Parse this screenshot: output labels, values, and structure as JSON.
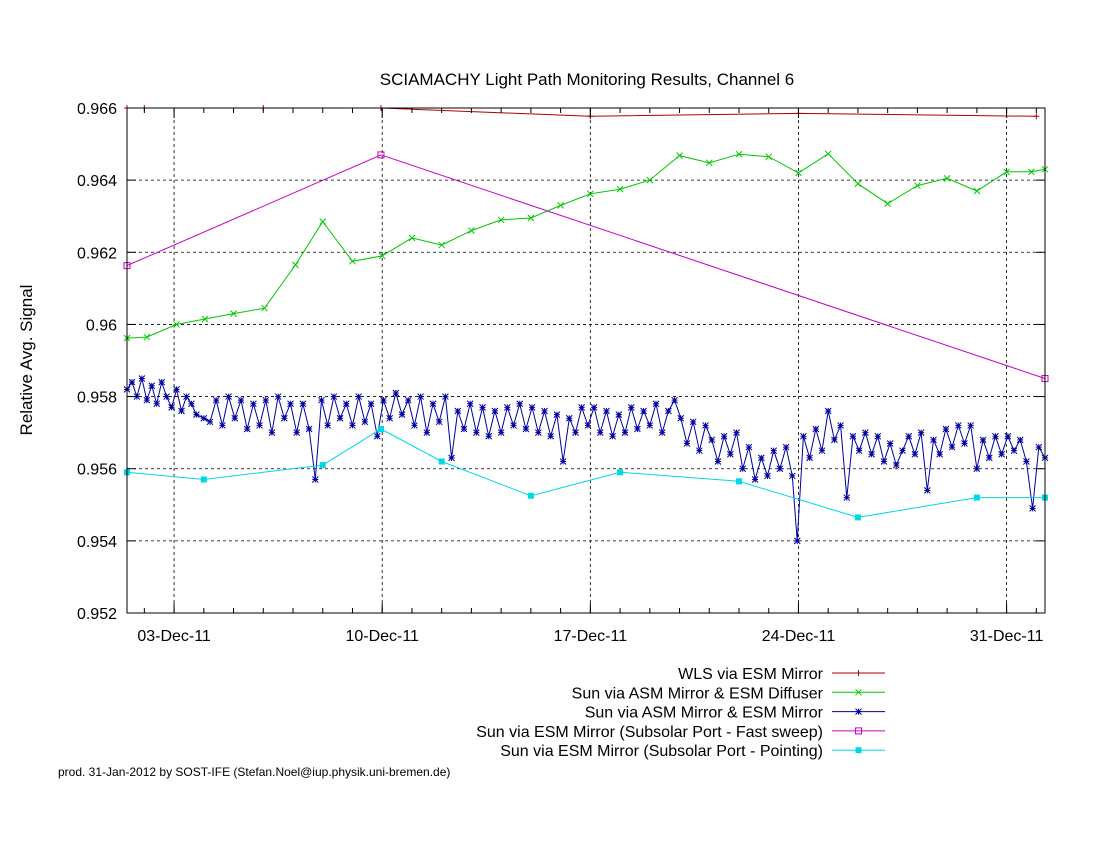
{
  "chart_data": {
    "type": "line",
    "title": "SCIAMACHY Light Path Monitoring Results, Channel 6",
    "xlabel": "",
    "ylabel": "Relative Avg. Signal",
    "xlim": [
      "2011-12-01T10:00",
      "2012-01-01T07:00"
    ],
    "ylim": [
      0.952,
      0.966
    ],
    "x_ticks": [
      {
        "label": "03-Dec-11",
        "date": "2011-12-03T00:00"
      },
      {
        "label": "10-Dec-11",
        "date": "2011-12-10T00:00"
      },
      {
        "label": "17-Dec-11",
        "date": "2011-12-17T00:00"
      },
      {
        "label": "24-Dec-11",
        "date": "2011-12-24T00:00"
      },
      {
        "label": "31-Dec-11",
        "date": "2011-12-31T00:00"
      }
    ],
    "y_ticks": [
      {
        "label": "0.952",
        "value": 0.952
      },
      {
        "label": "0.954",
        "value": 0.954
      },
      {
        "label": "0.956",
        "value": 0.956
      },
      {
        "label": "0.958",
        "value": 0.958
      },
      {
        "label": "0.96",
        "value": 0.96
      },
      {
        "label": "0.962",
        "value": 0.962
      },
      {
        "label": "0.964",
        "value": 0.964
      },
      {
        "label": "0.966",
        "value": 0.966
      }
    ],
    "grid": true,
    "legend_position": "below-right",
    "series": [
      {
        "name": "WLS via ESM Mirror",
        "color": "#b00000",
        "marker": "plus",
        "points": [
          [
            "2011-12-01T10:00",
            0.966
          ],
          [
            "2011-12-02T00:00",
            0.966
          ],
          [
            "2011-12-06T00:00",
            0.966
          ],
          [
            "2011-12-09T23:00",
            0.966
          ],
          [
            "2011-12-17T00:00",
            0.96577
          ],
          [
            "2011-12-24T00:00",
            0.96585
          ],
          [
            "2012-01-01T00:00",
            0.96577
          ]
        ]
      },
      {
        "name": "Sun via ASM Mirror & ESM Diffuser",
        "color": "#00c800",
        "marker": "cross",
        "points": [
          [
            "2011-12-01T10:00",
            0.95962
          ],
          [
            "2011-12-02T02:00",
            0.95965
          ],
          [
            "2011-12-03T02:00",
            0.96
          ],
          [
            "2011-12-04T01:00",
            0.96015
          ],
          [
            "2011-12-05T00:00",
            0.9603
          ],
          [
            "2011-12-06T01:00",
            0.96045
          ],
          [
            "2011-12-07T02:00",
            0.96165
          ],
          [
            "2011-12-08T00:00",
            0.96285
          ],
          [
            "2011-12-09T00:00",
            0.96175
          ],
          [
            "2011-12-10T00:00",
            0.9619
          ],
          [
            "2011-12-11T00:00",
            0.9624
          ],
          [
            "2011-12-12T00:00",
            0.9622
          ],
          [
            "2011-12-13T00:00",
            0.9626
          ],
          [
            "2011-12-14T00:00",
            0.9629
          ],
          [
            "2011-12-15T00:00",
            0.96295
          ],
          [
            "2011-12-16T00:00",
            0.9633
          ],
          [
            "2011-12-17T00:00",
            0.96362
          ],
          [
            "2011-12-18T00:00",
            0.96375
          ],
          [
            "2011-12-19T00:00",
            0.964
          ],
          [
            "2011-12-20T00:00",
            0.96468
          ],
          [
            "2011-12-21T00:00",
            0.96448
          ],
          [
            "2011-12-22T00:00",
            0.96472
          ],
          [
            "2011-12-23T00:00",
            0.96465
          ],
          [
            "2011-12-24T00:00",
            0.9642
          ],
          [
            "2011-12-25T00:00",
            0.96473
          ],
          [
            "2011-12-26T00:00",
            0.9639
          ],
          [
            "2011-12-27T00:00",
            0.96335
          ],
          [
            "2011-12-28T00:00",
            0.96385
          ],
          [
            "2011-12-29T00:00",
            0.96405
          ],
          [
            "2011-12-30T00:00",
            0.9637
          ],
          [
            "2011-12-31T00:00",
            0.96423
          ],
          [
            "2011-12-31T20:00",
            0.96423
          ],
          [
            "2012-01-01T07:00",
            0.9643
          ]
        ]
      },
      {
        "name": "Sun via ASM Mirror & ESM Mirror",
        "color": "#0000a0",
        "marker": "star",
        "points": [
          [
            "2011-12-01T10:00",
            0.9582
          ],
          [
            "2011-12-01T14:00",
            0.9584
          ],
          [
            "2011-12-01T18:00",
            0.958
          ],
          [
            "2011-12-01T22:00",
            0.9585
          ],
          [
            "2011-12-02T02:00",
            0.9579
          ],
          [
            "2011-12-02T06:00",
            0.9583
          ],
          [
            "2011-12-02T10:00",
            0.9578
          ],
          [
            "2011-12-02T14:00",
            0.9584
          ],
          [
            "2011-12-02T18:00",
            0.958
          ],
          [
            "2011-12-02T22:00",
            0.9577
          ],
          [
            "2011-12-03T02:00",
            0.9582
          ],
          [
            "2011-12-03T06:00",
            0.9576
          ],
          [
            "2011-12-03T10:00",
            0.958
          ],
          [
            "2011-12-03T14:00",
            0.9578
          ],
          [
            "2011-12-03T18:00",
            0.9575
          ],
          [
            "2011-12-04T00:00",
            0.9574
          ],
          [
            "2011-12-04T05:00",
            0.9573
          ],
          [
            "2011-12-04T10:00",
            0.9579
          ],
          [
            "2011-12-04T15:00",
            0.9572
          ],
          [
            "2011-12-04T20:00",
            0.958
          ],
          [
            "2011-12-05T01:00",
            0.9574
          ],
          [
            "2011-12-05T06:00",
            0.9579
          ],
          [
            "2011-12-05T11:00",
            0.9571
          ],
          [
            "2011-12-05T16:00",
            0.9578
          ],
          [
            "2011-12-05T21:00",
            0.9572
          ],
          [
            "2011-12-06T02:00",
            0.9579
          ],
          [
            "2011-12-06T07:00",
            0.957
          ],
          [
            "2011-12-06T12:00",
            0.958
          ],
          [
            "2011-12-06T17:00",
            0.9574
          ],
          [
            "2011-12-06T22:00",
            0.9578
          ],
          [
            "2011-12-07T03:00",
            0.957
          ],
          [
            "2011-12-07T08:00",
            0.9578
          ],
          [
            "2011-12-07T13:00",
            0.9571
          ],
          [
            "2011-12-07T18:00",
            0.9557
          ],
          [
            "2011-12-07T23:00",
            0.9579
          ],
          [
            "2011-12-08T04:00",
            0.9572
          ],
          [
            "2011-12-08T09:00",
            0.958
          ],
          [
            "2011-12-08T14:00",
            0.9574
          ],
          [
            "2011-12-08T19:00",
            0.9578
          ],
          [
            "2011-12-09T00:00",
            0.9572
          ],
          [
            "2011-12-09T05:00",
            0.958
          ],
          [
            "2011-12-09T10:00",
            0.9573
          ],
          [
            "2011-12-09T15:00",
            0.9578
          ],
          [
            "2011-12-09T20:00",
            0.9569
          ],
          [
            "2011-12-10T01:00",
            0.9579
          ],
          [
            "2011-12-10T06:00",
            0.9574
          ],
          [
            "2011-12-10T11:00",
            0.9581
          ],
          [
            "2011-12-10T16:00",
            0.9575
          ],
          [
            "2011-12-10T21:00",
            0.9579
          ],
          [
            "2011-12-11T02:00",
            0.9572
          ],
          [
            "2011-12-11T07:00",
            0.958
          ],
          [
            "2011-12-11T12:00",
            0.957
          ],
          [
            "2011-12-11T17:00",
            0.9578
          ],
          [
            "2011-12-11T22:00",
            0.9573
          ],
          [
            "2011-12-12T03:00",
            0.958
          ],
          [
            "2011-12-12T08:00",
            0.9563
          ],
          [
            "2011-12-12T13:00",
            0.9576
          ],
          [
            "2011-12-12T18:00",
            0.9571
          ],
          [
            "2011-12-12T23:00",
            0.9578
          ],
          [
            "2011-12-13T04:00",
            0.957
          ],
          [
            "2011-12-13T09:00",
            0.9577
          ],
          [
            "2011-12-13T14:00",
            0.9569
          ],
          [
            "2011-12-13T19:00",
            0.9576
          ],
          [
            "2011-12-14T00:00",
            0.957
          ],
          [
            "2011-12-14T05:00",
            0.9577
          ],
          [
            "2011-12-14T10:00",
            0.9572
          ],
          [
            "2011-12-14T15:00",
            0.9578
          ],
          [
            "2011-12-14T20:00",
            0.9571
          ],
          [
            "2011-12-15T01:00",
            0.9577
          ],
          [
            "2011-12-15T06:00",
            0.957
          ],
          [
            "2011-12-15T11:00",
            0.9576
          ],
          [
            "2011-12-15T16:00",
            0.9569
          ],
          [
            "2011-12-15T21:00",
            0.9575
          ],
          [
            "2011-12-16T02:00",
            0.9562
          ],
          [
            "2011-12-16T07:00",
            0.9574
          ],
          [
            "2011-12-16T12:00",
            0.957
          ],
          [
            "2011-12-16T17:00",
            0.9577
          ],
          [
            "2011-12-16T22:00",
            0.9572
          ],
          [
            "2011-12-17T03:00",
            0.9577
          ],
          [
            "2011-12-17T08:00",
            0.957
          ],
          [
            "2011-12-17T13:00",
            0.9576
          ],
          [
            "2011-12-17T18:00",
            0.9569
          ],
          [
            "2011-12-17T23:00",
            0.9575
          ],
          [
            "2011-12-18T04:00",
            0.957
          ],
          [
            "2011-12-18T09:00",
            0.9577
          ],
          [
            "2011-12-18T14:00",
            0.9571
          ],
          [
            "2011-12-18T19:00",
            0.9576
          ],
          [
            "2011-12-19T00:00",
            0.9572
          ],
          [
            "2011-12-19T05:00",
            0.9578
          ],
          [
            "2011-12-19T10:00",
            0.957
          ],
          [
            "2011-12-19T15:00",
            0.9576
          ],
          [
            "2011-12-19T20:00",
            0.9579
          ],
          [
            "2011-12-20T01:00",
            0.9574
          ],
          [
            "2011-12-20T06:00",
            0.9567
          ],
          [
            "2011-12-20T11:00",
            0.9573
          ],
          [
            "2011-12-20T16:00",
            0.9565
          ],
          [
            "2011-12-20T21:00",
            0.9572
          ],
          [
            "2011-12-21T02:00",
            0.9568
          ],
          [
            "2011-12-21T07:00",
            0.9562
          ],
          [
            "2011-12-21T12:00",
            0.9569
          ],
          [
            "2011-12-21T17:00",
            0.9564
          ],
          [
            "2011-12-21T22:00",
            0.957
          ],
          [
            "2011-12-22T03:00",
            0.956
          ],
          [
            "2011-12-22T08:00",
            0.9566
          ],
          [
            "2011-12-22T13:00",
            0.9557
          ],
          [
            "2011-12-22T18:00",
            0.9563
          ],
          [
            "2011-12-22T23:00",
            0.9558
          ],
          [
            "2011-12-23T04:00",
            0.9565
          ],
          [
            "2011-12-23T09:00",
            0.956
          ],
          [
            "2011-12-23T14:00",
            0.9566
          ],
          [
            "2011-12-23T19:00",
            0.9558
          ],
          [
            "2011-12-23T23:00",
            0.954
          ],
          [
            "2011-12-24T04:00",
            0.9569
          ],
          [
            "2011-12-24T09:00",
            0.9563
          ],
          [
            "2011-12-24T14:00",
            0.9571
          ],
          [
            "2011-12-24T19:00",
            0.9565
          ],
          [
            "2011-12-25T00:00",
            0.9576
          ],
          [
            "2011-12-25T05:00",
            0.9568
          ],
          [
            "2011-12-25T10:00",
            0.9572
          ],
          [
            "2011-12-25T15:00",
            0.9552
          ],
          [
            "2011-12-25T20:00",
            0.9569
          ],
          [
            "2011-12-26T01:00",
            0.9565
          ],
          [
            "2011-12-26T06:00",
            0.957
          ],
          [
            "2011-12-26T11:00",
            0.9564
          ],
          [
            "2011-12-26T16:00",
            0.9569
          ],
          [
            "2011-12-26T21:00",
            0.9562
          ],
          [
            "2011-12-27T02:00",
            0.9567
          ],
          [
            "2011-12-27T07:00",
            0.9561
          ],
          [
            "2011-12-27T12:00",
            0.9565
          ],
          [
            "2011-12-27T17:00",
            0.9569
          ],
          [
            "2011-12-27T22:00",
            0.9564
          ],
          [
            "2011-12-28T03:00",
            0.957
          ],
          [
            "2011-12-28T08:00",
            0.9554
          ],
          [
            "2011-12-28T13:00",
            0.9568
          ],
          [
            "2011-12-28T18:00",
            0.9564
          ],
          [
            "2011-12-28T23:00",
            0.9571
          ],
          [
            "2011-12-29T04:00",
            0.9566
          ],
          [
            "2011-12-29T09:00",
            0.9572
          ],
          [
            "2011-12-29T14:00",
            0.9567
          ],
          [
            "2011-12-29T19:00",
            0.9572
          ],
          [
            "2011-12-30T00:00",
            0.956
          ],
          [
            "2011-12-30T05:00",
            0.9568
          ],
          [
            "2011-12-30T10:00",
            0.9563
          ],
          [
            "2011-12-30T15:00",
            0.9569
          ],
          [
            "2011-12-30T20:00",
            0.9564
          ],
          [
            "2011-12-31T01:00",
            0.9569
          ],
          [
            "2011-12-31T06:00",
            0.9565
          ],
          [
            "2011-12-31T11:00",
            0.9568
          ],
          [
            "2011-12-31T16:00",
            0.9562
          ],
          [
            "2011-12-31T21:00",
            0.9549
          ],
          [
            "2012-01-01T02:00",
            0.9566
          ],
          [
            "2012-01-01T07:00",
            0.9563
          ]
        ]
      },
      {
        "name": "Sun via ESM Mirror (Subsolar Port - Fast sweep)",
        "color": "#c800c8",
        "marker": "square",
        "points": [
          [
            "2011-12-01T10:00",
            0.96163
          ],
          [
            "2011-12-09T23:00",
            0.9647
          ],
          [
            "2012-01-01T07:00",
            0.9585
          ]
        ]
      },
      {
        "name": "Sun via ESM Mirror (Subsolar Port - Pointing)",
        "color": "#00d8e8",
        "marker": "filled-square",
        "points": [
          [
            "2011-12-01T10:00",
            0.9559
          ],
          [
            "2011-12-04T00:00",
            0.9557
          ],
          [
            "2011-12-08T00:00",
            0.9561
          ],
          [
            "2011-12-09T23:00",
            0.9571
          ],
          [
            "2011-12-12T00:00",
            0.9562
          ],
          [
            "2011-12-15T00:00",
            0.95525
          ],
          [
            "2011-12-18T00:00",
            0.9559
          ],
          [
            "2011-12-22T00:00",
            0.95565
          ],
          [
            "2011-12-26T00:00",
            0.95465
          ],
          [
            "2011-12-30T00:00",
            0.9552
          ],
          [
            "2012-01-01T07:00",
            0.9552
          ]
        ]
      }
    ]
  },
  "footer": {
    "credit": "prod. 31-Jan-2012 by SOST-IFE (Stefan.Noel@iup.physik.uni-bremen.de)"
  }
}
